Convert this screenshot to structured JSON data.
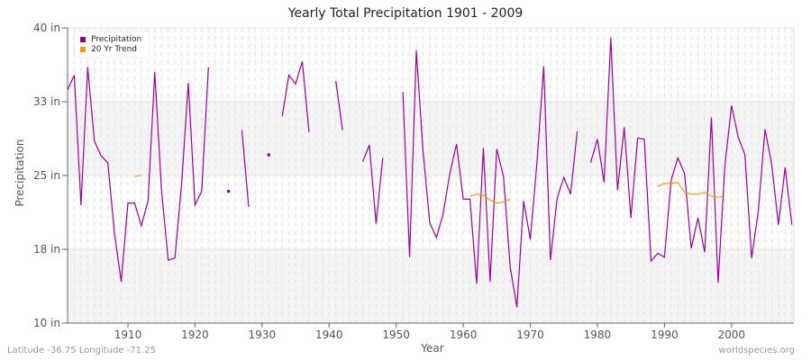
{
  "title": "Yearly Total Precipitation 1901 - 2009",
  "footer": {
    "left": "Latitude -36.75 Longitude -71.25",
    "right": "worldspecies.org"
  },
  "colors": {
    "precipitation": "#990099",
    "trend": "#ff9900",
    "band": "#f4f4f4"
  },
  "chart_data": {
    "type": "line",
    "title": "Yearly Total Precipitation 1901 - 2009",
    "xlabel": "Year",
    "ylabel": "Precipitation",
    "xlim": [
      1901,
      2009
    ],
    "ylim": [
      10,
      40
    ],
    "yticks": [
      {
        "value": 10,
        "label": "10 in"
      },
      {
        "value": 17.5,
        "label": "18 in"
      },
      {
        "value": 25,
        "label": "25 in"
      },
      {
        "value": 32.5,
        "label": "33 in"
      },
      {
        "value": 40,
        "label": "40 in"
      }
    ],
    "xticks": [
      1910,
      1920,
      1930,
      1940,
      1950,
      1960,
      1970,
      1980,
      1990,
      2000
    ],
    "legend": [
      "Precipitation",
      "20 Yr Trend"
    ],
    "legend_position": "top-left",
    "grid": true,
    "series": [
      {
        "name": "Precipitation",
        "color": "#990099",
        "points": [
          [
            1901,
            33.7
          ],
          [
            1902,
            35.2
          ],
          [
            1903,
            22.0
          ],
          [
            1904,
            36.0
          ],
          [
            1905,
            28.5
          ],
          [
            1906,
            27.0
          ],
          [
            1907,
            26.3
          ],
          [
            1908,
            19.1
          ],
          [
            1909,
            14.2
          ],
          [
            1910,
            22.2
          ],
          [
            1911,
            22.2
          ],
          [
            1912,
            19.9
          ],
          [
            1913,
            22.4
          ],
          [
            1914,
            35.5
          ],
          [
            1915,
            23.6
          ],
          [
            1916,
            16.4
          ],
          [
            1917,
            16.6
          ],
          [
            1918,
            24.1
          ],
          [
            1919,
            34.4
          ],
          [
            1920,
            22.0
          ],
          [
            1921,
            23.4
          ],
          [
            1922,
            36.0
          ],
          [
            1923,
            null
          ],
          [
            1924,
            null
          ],
          [
            1925,
            23.4
          ],
          [
            1926,
            null
          ],
          [
            1927,
            29.6
          ],
          [
            1928,
            21.8
          ],
          [
            1929,
            null
          ],
          [
            1930,
            null
          ],
          [
            1931,
            27.1
          ],
          [
            1932,
            null
          ],
          [
            1933,
            31.0
          ],
          [
            1934,
            35.2
          ],
          [
            1935,
            34.3
          ],
          [
            1936,
            36.6
          ],
          [
            1937,
            29.4
          ],
          [
            1938,
            null
          ],
          [
            1939,
            null
          ],
          [
            1940,
            null
          ],
          [
            1941,
            34.6
          ],
          [
            1942,
            29.6
          ],
          [
            1943,
            null
          ],
          [
            1944,
            null
          ],
          [
            1945,
            26.4
          ],
          [
            1946,
            28.1
          ],
          [
            1947,
            20.1
          ],
          [
            1948,
            26.8
          ],
          [
            1949,
            null
          ],
          [
            1950,
            null
          ],
          [
            1951,
            33.5
          ],
          [
            1952,
            16.7
          ],
          [
            1953,
            37.7
          ],
          [
            1954,
            27.5
          ],
          [
            1955,
            20.2
          ],
          [
            1956,
            18.7
          ],
          [
            1957,
            21.1
          ],
          [
            1958,
            25.2
          ],
          [
            1959,
            28.2
          ],
          [
            1960,
            22.6
          ],
          [
            1961,
            22.6
          ],
          [
            1962,
            14.0
          ],
          [
            1963,
            27.8
          ],
          [
            1964,
            14.2
          ],
          [
            1965,
            27.7
          ],
          [
            1966,
            24.9
          ],
          [
            1967,
            15.7
          ],
          [
            1968,
            11.6
          ],
          [
            1969,
            22.4
          ],
          [
            1970,
            18.5
          ],
          [
            1971,
            26.4
          ],
          [
            1972,
            36.1
          ],
          [
            1973,
            16.4
          ],
          [
            1974,
            22.7
          ],
          [
            1975,
            24.8
          ],
          [
            1976,
            23.1
          ],
          [
            1977,
            29.5
          ],
          [
            1978,
            null
          ],
          [
            1979,
            26.3
          ],
          [
            1980,
            28.7
          ],
          [
            1981,
            24.3
          ],
          [
            1982,
            39.0
          ],
          [
            1983,
            23.5
          ],
          [
            1984,
            29.9
          ],
          [
            1985,
            20.7
          ],
          [
            1986,
            28.8
          ],
          [
            1987,
            28.7
          ],
          [
            1988,
            16.3
          ],
          [
            1989,
            17.1
          ],
          [
            1990,
            16.7
          ],
          [
            1991,
            24.5
          ],
          [
            1992,
            26.8
          ],
          [
            1993,
            25.2
          ],
          [
            1994,
            17.6
          ],
          [
            1995,
            20.7
          ],
          [
            1996,
            17.2
          ],
          [
            1997,
            30.9
          ],
          [
            1998,
            14.1
          ],
          [
            1999,
            25.9
          ],
          [
            2000,
            32.1
          ],
          [
            2001,
            28.9
          ],
          [
            2002,
            27.1
          ],
          [
            2003,
            16.6
          ],
          [
            2004,
            21.4
          ],
          [
            2005,
            29.7
          ],
          [
            2006,
            26.1
          ],
          [
            2007,
            20.0
          ],
          [
            2008,
            25.8
          ],
          [
            2009,
            20.0
          ]
        ]
      },
      {
        "name": "20 Yr Trend",
        "color": "#ff9900",
        "points": [
          [
            1911,
            24.9
          ],
          [
            1912,
            25.0
          ],
          [
            1913,
            null
          ],
          [
            1961,
            22.9
          ],
          [
            1962,
            23.1
          ],
          [
            1963,
            23.0
          ],
          [
            1964,
            22.5
          ],
          [
            1965,
            22.2
          ],
          [
            1966,
            22.3
          ],
          [
            1967,
            22.6
          ],
          [
            1968,
            null
          ],
          [
            1989,
            23.9
          ],
          [
            1990,
            24.2
          ],
          [
            1991,
            24.2
          ],
          [
            1992,
            24.3
          ],
          [
            1993,
            23.3
          ],
          [
            1994,
            23.1
          ],
          [
            1995,
            23.1
          ],
          [
            1996,
            23.3
          ],
          [
            1997,
            22.9
          ],
          [
            1998,
            22.8
          ],
          [
            1999,
            22.9
          ]
        ]
      }
    ]
  }
}
